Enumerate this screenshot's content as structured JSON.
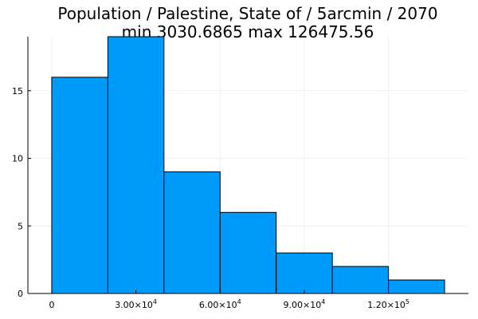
{
  "chart_data": {
    "type": "bar",
    "title": "Population / Palestine, State of / 5arcmin / 2070",
    "subtitle": "min 3030.6865  max 126475.56",
    "bin_edges": [
      0,
      20000,
      40000,
      60000,
      80000,
      100000,
      120000,
      140000
    ],
    "values": [
      16,
      19,
      9,
      6,
      3,
      2,
      1
    ],
    "xlim": [
      -8500,
      148500
    ],
    "ylim": [
      0,
      19
    ],
    "x_ticks": [
      {
        "value": 0,
        "mantissa": "0",
        "exponent": ""
      },
      {
        "value": 30000,
        "mantissa": "3.00×10",
        "exponent": "4"
      },
      {
        "value": 60000,
        "mantissa": "6.00×10",
        "exponent": "4"
      },
      {
        "value": 90000,
        "mantissa": "9.00×10",
        "exponent": "4"
      },
      {
        "value": 120000,
        "mantissa": "1.20×10",
        "exponent": "5"
      }
    ],
    "y_ticks": [
      0,
      5,
      10,
      15
    ],
    "grid": true,
    "legend": "none",
    "bar_color": "#009AFA"
  }
}
